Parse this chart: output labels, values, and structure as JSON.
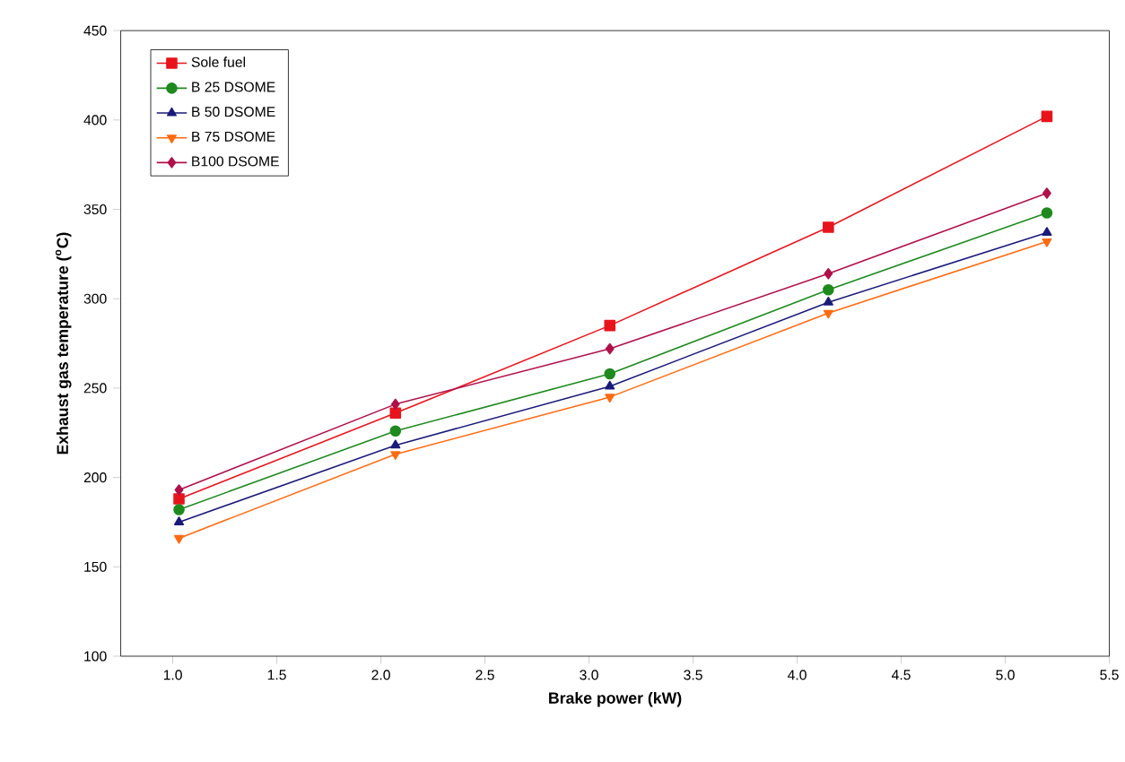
{
  "chart_data": {
    "type": "line",
    "xlabel": "Brake power (kW)",
    "ylabel": "Exhaust gas temperature ($^{o}$C)",
    "x": [
      1.03,
      2.07,
      3.1,
      4.15,
      5.2
    ],
    "series": [
      {
        "name": "Sole fuel",
        "color": "#e8141c",
        "marker": "square",
        "values": [
          188,
          236,
          285,
          340,
          402
        ]
      },
      {
        "name": "B 25 DSOME",
        "color": "#1e8a1e",
        "marker": "circle",
        "values": [
          182,
          226,
          258,
          305,
          348
        ]
      },
      {
        "name": "B 50 DSOME",
        "color": "#1a1a7a",
        "marker": "triangle",
        "values": [
          175,
          218,
          251,
          298,
          337
        ]
      },
      {
        "name": "B 75 DSOME",
        "color": "#ff6a10",
        "marker": "triangle down",
        "values": [
          166,
          213,
          245,
          292,
          332
        ]
      },
      {
        "name": "B100 DSOME",
        "color": "#b0104a",
        "marker": "diamond",
        "values": [
          193,
          241,
          272,
          314,
          359
        ]
      }
    ],
    "xlim": [
      0.75,
      5.5
    ],
    "ylim": [
      100,
      450
    ],
    "xticks": [
      {
        "value": 1.0,
        "label": "1.0"
      },
      1.5,
      {
        "value": 2.0,
        "label": "2.0"
      },
      2.5,
      {
        "value": 3.0,
        "label": "3.0"
      },
      3.5,
      {
        "value": 4.0,
        "label": "4.0"
      },
      4.5,
      {
        "value": 5.0,
        "label": "5.0"
      },
      5.5
    ],
    "yticks": [
      100,
      150,
      200,
      250,
      300,
      350,
      400,
      450
    ],
    "legend": "top left",
    "grid": false,
    "line_style": "solid"
  }
}
